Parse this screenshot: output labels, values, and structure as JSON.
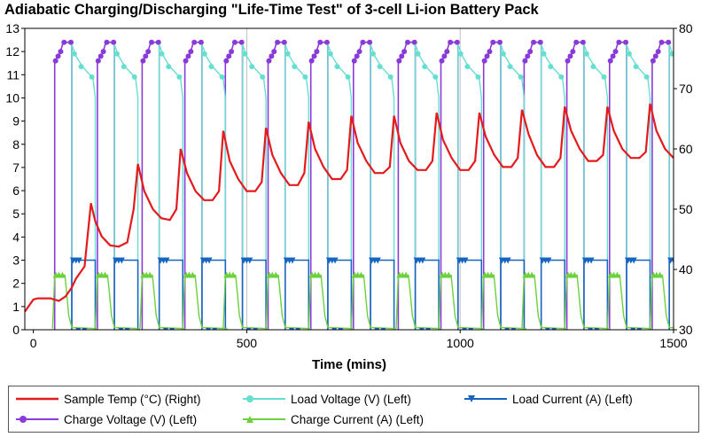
{
  "title": "Adiabatic Charging/Discharging \"Life-Time Test\" of 3-cell Li-ion Battery Pack",
  "chart_data": {
    "type": "line",
    "title": "Adiabatic Charging/Discharging \"Life-Time Test\" of 3-cell Li-ion Battery Pack",
    "xlabel": "Time (mins)",
    "ylabel_left": "",
    "ylabel_right": "",
    "xlim": [
      -20,
      1500
    ],
    "ylim_left": [
      0,
      13
    ],
    "ylim_right": [
      30,
      80
    ],
    "x_ticks": [
      0,
      500,
      1000,
      1500
    ],
    "y_ticks_left": [
      0,
      1,
      2,
      3,
      4,
      5,
      6,
      7,
      8,
      9,
      10,
      11,
      12,
      13
    ],
    "y_ticks_right": [
      30,
      40,
      50,
      60,
      70,
      80
    ],
    "grid": "vertical at 500 and 1000",
    "legend_position": "bottom",
    "cycle_starts": [
      50,
      150,
      255,
      355,
      450,
      550,
      650,
      750,
      855,
      955,
      1055,
      1150,
      1250,
      1350,
      1450
    ],
    "series": [
      {
        "name": "Sample Temp (°C) (Right)",
        "axis": "right",
        "color": "#e41a1c",
        "x": [
          -20,
          0,
          10,
          40,
          60,
          75,
          90,
          100,
          120,
          135,
          145,
          160,
          180,
          200,
          220,
          235,
          245,
          260,
          280,
          300,
          320,
          335,
          345,
          360,
          380,
          400,
          420,
          435,
          445,
          460,
          480,
          500,
          520,
          535,
          545,
          560,
          580,
          600,
          620,
          635,
          645,
          660,
          680,
          700,
          720,
          735,
          745,
          760,
          780,
          800,
          820,
          835,
          845,
          860,
          880,
          900,
          920,
          935,
          945,
          960,
          980,
          1000,
          1020,
          1035,
          1045,
          1060,
          1080,
          1100,
          1120,
          1135,
          1145,
          1160,
          1180,
          1200,
          1220,
          1235,
          1245,
          1260,
          1280,
          1300,
          1320,
          1335,
          1345,
          1360,
          1380,
          1400,
          1420,
          1435,
          1445,
          1460,
          1480,
          1500
        ],
        "values": [
          33,
          35,
          35.2,
          35.2,
          34.8,
          35.5,
          37,
          38.5,
          40.5,
          51,
          48,
          45.5,
          44,
          43.8,
          44.5,
          50,
          57.5,
          53,
          50,
          48.5,
          48.2,
          50,
          60,
          56,
          53,
          51.5,
          51.5,
          53,
          63,
          58,
          55,
          53,
          53,
          54.5,
          63.5,
          59,
          56,
          54,
          54,
          56,
          64.5,
          60,
          57,
          55,
          55,
          56.5,
          65.5,
          61,
          58,
          56,
          56,
          57,
          65.5,
          61,
          58,
          56.5,
          56.5,
          58,
          66,
          61.5,
          58.5,
          56.5,
          56.5,
          58,
          66,
          62,
          59,
          57,
          57,
          58.5,
          66.5,
          62.5,
          59,
          57,
          57,
          58.5,
          67,
          63,
          60,
          58,
          58,
          59,
          67,
          63,
          60,
          58.5,
          58.5,
          59.5,
          67.5,
          63,
          60,
          58.5
        ]
      },
      {
        "name": "Load Voltage (V) (Left)",
        "axis": "left",
        "color": "#66dfd0",
        "peak": 12.3,
        "end": 10.8,
        "marker": "circle"
      },
      {
        "name": "Load Current (A) (Left)",
        "axis": "left",
        "color": "#1565c0",
        "level": 3.0,
        "marker": "triangle-down"
      },
      {
        "name": "Charge Voltage (V) (Left)",
        "axis": "left",
        "color": "#8a3ad8",
        "start": 11.6,
        "peak": 12.4,
        "marker": "circle"
      },
      {
        "name": "Charge Current (A) (Left)",
        "axis": "left",
        "color": "#6cd13d",
        "level": 2.35,
        "marker": "triangle-up"
      }
    ]
  },
  "legend": [
    {
      "label": "Sample Temp (°C) (Right)",
      "color": "#e41a1c",
      "marker": "none"
    },
    {
      "label": "Load Voltage (V) (Left)",
      "color": "#66dfd0",
      "marker": "circle"
    },
    {
      "label": "Load Current (A) (Left)",
      "color": "#1565c0",
      "marker": "triangle-down"
    },
    {
      "label": "Charge Voltage (V) (Left)",
      "color": "#8a3ad8",
      "marker": "circle"
    },
    {
      "label": "Charge Current (A) (Left)",
      "color": "#6cd13d",
      "marker": "triangle-up"
    }
  ]
}
